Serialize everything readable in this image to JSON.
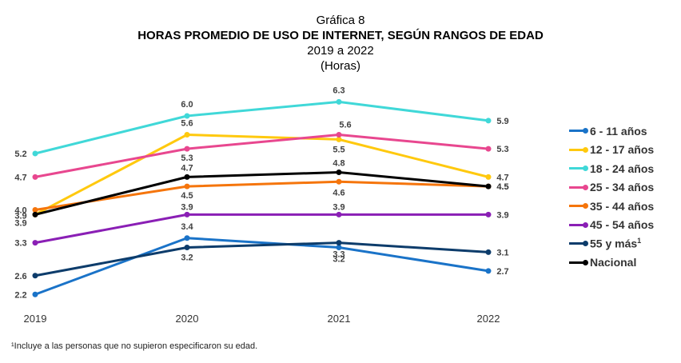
{
  "header": {
    "label": "Gráfica 8",
    "title": "HORAS PROMEDIO DE USO DE INTERNET, SEGÚN RANGOS DE EDAD",
    "period": "2019 a 2022",
    "unit": "(Horas)"
  },
  "footnote": "¹Incluye a las personas que no supieron especificaron su edad.",
  "chart_data": {
    "type": "line",
    "categories": [
      "2019",
      "2020",
      "2021",
      "2022"
    ],
    "ylabel": "",
    "xlabel": "",
    "ylim": [
      2.0,
      6.5
    ],
    "grid": false,
    "legend_position": "right",
    "series": [
      {
        "name": "6 - 11 años",
        "color": "#1a73c8",
        "values": [
          2.2,
          3.4,
          3.2,
          2.7
        ]
      },
      {
        "name": "12 - 17 años",
        "color": "#ffc90e",
        "values": [
          3.9,
          5.6,
          5.5,
          4.7
        ]
      },
      {
        "name": "18 - 24 años",
        "color": "#40d8d8",
        "values": [
          5.2,
          6.0,
          6.3,
          5.9
        ]
      },
      {
        "name": "25 - 34 años",
        "color": "#e8478f",
        "values": [
          4.7,
          5.3,
          5.6,
          5.3
        ]
      },
      {
        "name": "35 - 44 años",
        "color": "#f5750c",
        "values": [
          4.0,
          4.5,
          4.6,
          4.5
        ]
      },
      {
        "name": "45 - 54 años",
        "color": "#8a1fb5",
        "values": [
          3.3,
          3.9,
          3.9,
          3.9
        ]
      },
      {
        "name": "55 y más",
        "name_sup": "1",
        "color": "#0d3c6b",
        "values": [
          2.6,
          3.2,
          3.3,
          3.1
        ]
      },
      {
        "name": "Nacional",
        "color": "#000000",
        "values": [
          3.9,
          4.7,
          4.8,
          4.5
        ]
      }
    ]
  }
}
